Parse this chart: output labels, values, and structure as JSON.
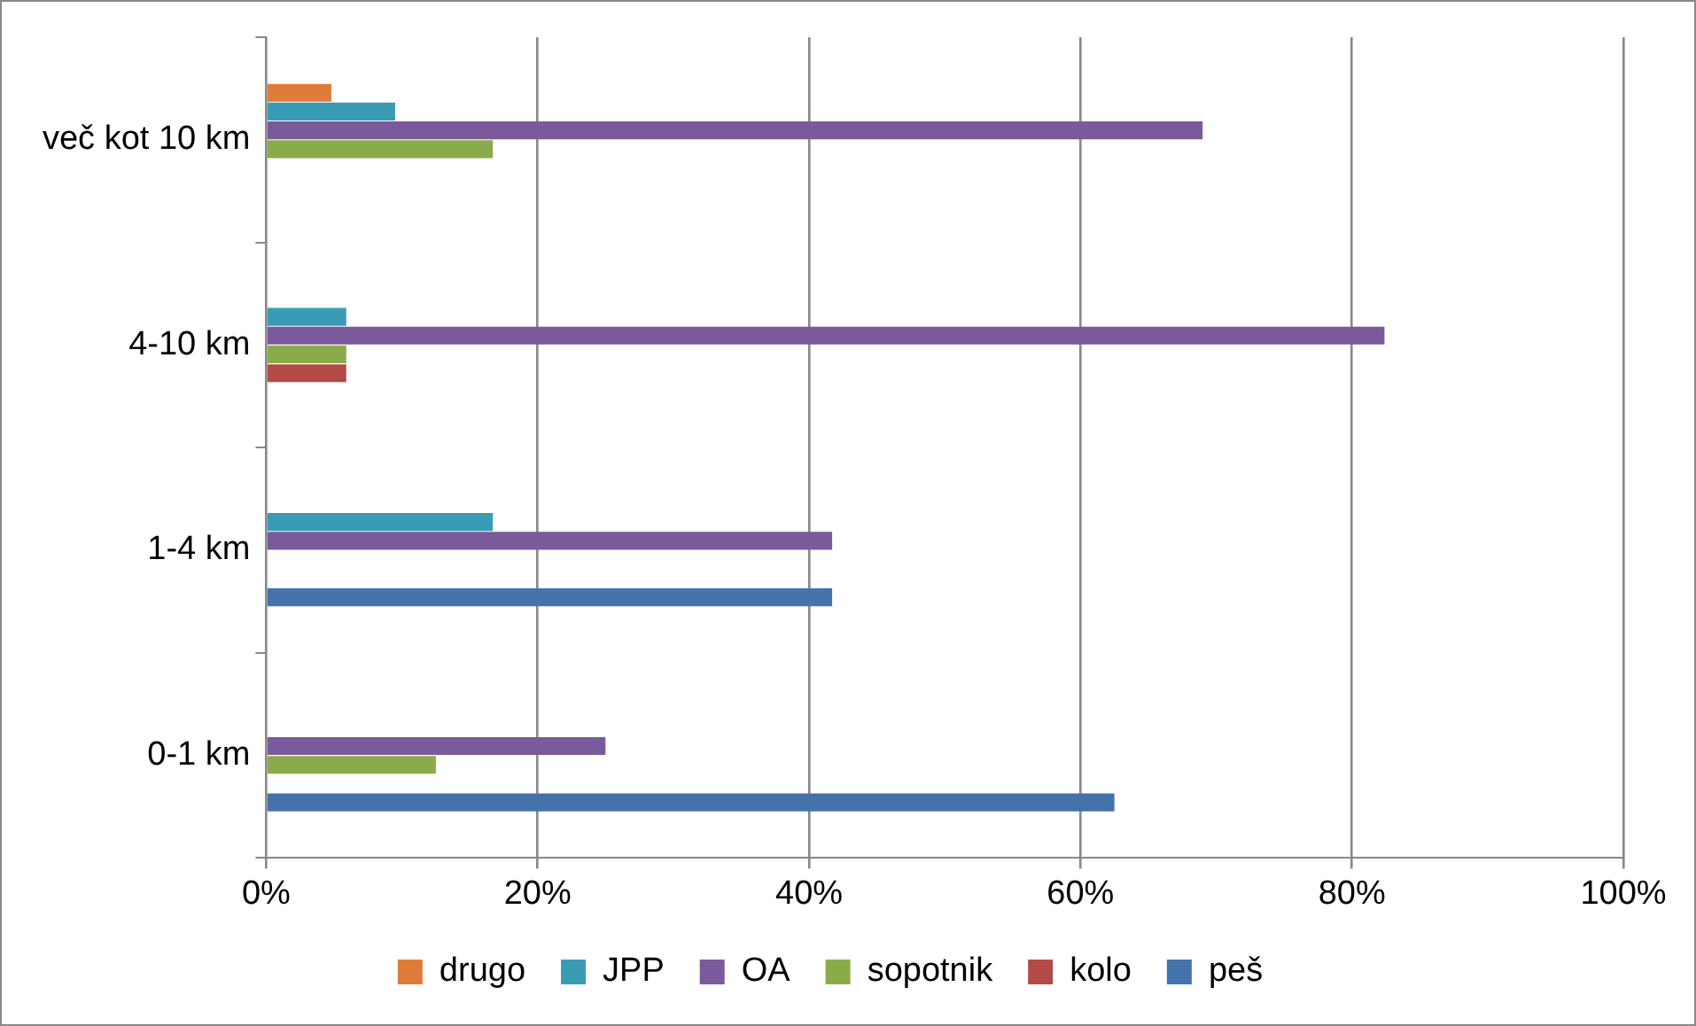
{
  "chart_data": {
    "type": "bar",
    "orientation": "horizontal",
    "categories": [
      "več kot 10 km",
      "4-10 km",
      "1-4 km",
      "0-1 km"
    ],
    "series": [
      {
        "name": "drugo",
        "color": "#e07b39",
        "values": [
          4.8,
          null,
          null,
          null
        ]
      },
      {
        "name": "JPP",
        "color": "#3a9bb5",
        "values": [
          9.5,
          5.9,
          16.7,
          null
        ]
      },
      {
        "name": "OA",
        "color": "#7a5a9a",
        "values": [
          69,
          82.4,
          41.7,
          25
        ]
      },
      {
        "name": "sopotnik",
        "color": "#8aab4a",
        "values": [
          16.7,
          5.9,
          null,
          12.5
        ]
      },
      {
        "name": "kolo",
        "color": "#b44a45",
        "values": [
          null,
          5.9,
          null,
          null
        ]
      },
      {
        "name": "peš",
        "color": "#4472aa",
        "values": [
          null,
          null,
          41.7,
          62.5
        ]
      }
    ],
    "xlim": [
      0,
      100
    ],
    "xticks": [
      {
        "value": 0,
        "label": "0%"
      },
      {
        "value": 20,
        "label": "20%"
      },
      {
        "value": 40,
        "label": "40%"
      },
      {
        "value": 60,
        "label": "60%"
      },
      {
        "value": 80,
        "label": "80%"
      },
      {
        "value": 100,
        "label": "100%"
      }
    ],
    "grid": "x",
    "legend": "bottom"
  }
}
